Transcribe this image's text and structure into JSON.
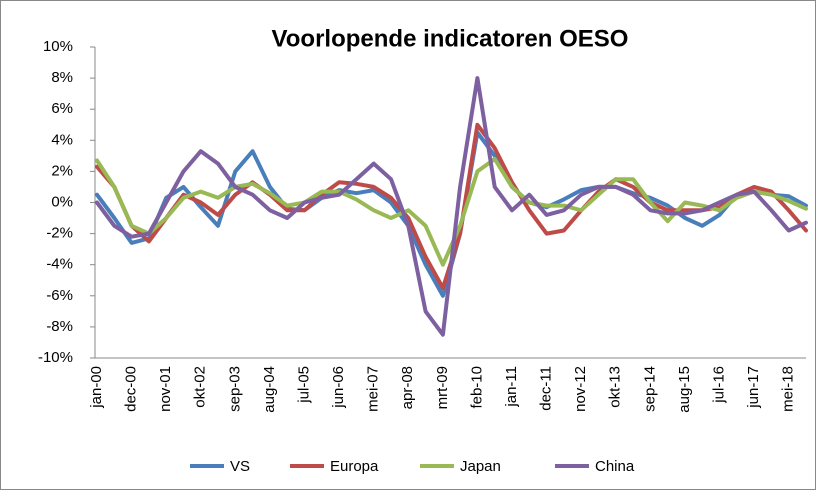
{
  "chart_data": {
    "type": "line",
    "title": "Voorlopende indicatoren OESO",
    "categories": [
      "jan-00",
      null,
      "dec-00",
      null,
      "nov-01",
      null,
      "okt-02",
      null,
      "sep-03",
      null,
      "aug-04",
      null,
      "jul-05",
      null,
      "jun-06",
      null,
      "mei-07",
      null,
      "apr-08",
      null,
      "mrt-09",
      null,
      "feb-10",
      null,
      "jan-11",
      null,
      "dec-11",
      null,
      "nov-12",
      null,
      "okt-13",
      null,
      "sep-14",
      null,
      "aug-15",
      null,
      "jul-16",
      null,
      "jun-17",
      null,
      "mei-18",
      null
    ],
    "series": [
      {
        "name": "VS",
        "color": "#4a7ebb",
        "values": [
          0.5,
          -1,
          -2.6,
          -2.3,
          0.3,
          1,
          -0.3,
          -1.5,
          2,
          3.3,
          1,
          -0.4,
          -0.5,
          0.3,
          0.8,
          0.6,
          0.8,
          0,
          -1.5,
          -4,
          -6,
          -2,
          4.5,
          3,
          1,
          0,
          -0.3,
          0.2,
          0.8,
          1,
          1,
          0.6,
          0.3,
          -0.2,
          -1,
          -1.5,
          -0.8,
          0.5,
          0.7,
          0.5,
          0.4,
          -0.2
        ]
      },
      {
        "name": "Europa",
        "color": "#be4b48",
        "values": [
          2.3,
          1,
          -1.5,
          -2.5,
          -1,
          0.5,
          0,
          -0.8,
          0.5,
          1.3,
          0.5,
          -0.5,
          -0.5,
          0.5,
          1.3,
          1.2,
          1,
          0.3,
          -1,
          -3.5,
          -5.5,
          -2,
          5,
          3.5,
          1.3,
          -0.5,
          -2,
          -1.8,
          -0.5,
          0.7,
          1.5,
          1,
          0,
          -0.5,
          -0.5,
          -0.5,
          -0.3,
          0.5,
          1,
          0.7,
          -0.5,
          -1.8
        ]
      },
      {
        "name": "Japan",
        "color": "#98b954",
        "values": [
          2.7,
          1,
          -1.5,
          -2,
          -1,
          0.3,
          0.7,
          0.3,
          1,
          1.2,
          0.6,
          -0.2,
          0,
          0.7,
          0.7,
          0.2,
          -0.5,
          -1,
          -0.5,
          -1.5,
          -4,
          -1.5,
          2,
          2.8,
          1,
          0,
          -0.2,
          -0.2,
          -0.5,
          0.5,
          1.5,
          1.5,
          0,
          -1.2,
          0,
          -0.2,
          -0.5,
          0.3,
          0.7,
          0.5,
          0.1,
          -0.4
        ]
      },
      {
        "name": "China",
        "color": "#7d60a0",
        "values": [
          0,
          -1.5,
          -2.2,
          -2,
          0,
          2,
          3.3,
          2.5,
          1,
          0.5,
          -0.5,
          -1,
          0,
          0.3,
          0.5,
          1.5,
          2.5,
          1.5,
          -1.5,
          -7,
          -8.5,
          1,
          8,
          1,
          -0.5,
          0.5,
          -0.8,
          -0.5,
          0.5,
          1,
          1,
          0.5,
          -0.5,
          -0.7,
          -0.7,
          -0.5,
          0,
          0.5,
          0.7,
          -0.5,
          -1.8,
          -1.3
        ]
      }
    ],
    "ylim": [
      -10,
      10
    ],
    "yticks": [
      {
        "value": -10,
        "label": "-10%"
      },
      {
        "value": -8,
        "label": "-8%"
      },
      {
        "value": -6,
        "label": "-6%"
      },
      {
        "value": -4,
        "label": "-4%"
      },
      {
        "value": -2,
        "label": "-2%"
      },
      {
        "value": 0,
        "label": "0%"
      },
      {
        "value": 2,
        "label": "2%"
      },
      {
        "value": 4,
        "label": "4%"
      },
      {
        "value": 6,
        "label": "6%"
      },
      {
        "value": 8,
        "label": "8%"
      },
      {
        "value": 10,
        "label": "10%"
      }
    ],
    "legend": "bottom"
  }
}
